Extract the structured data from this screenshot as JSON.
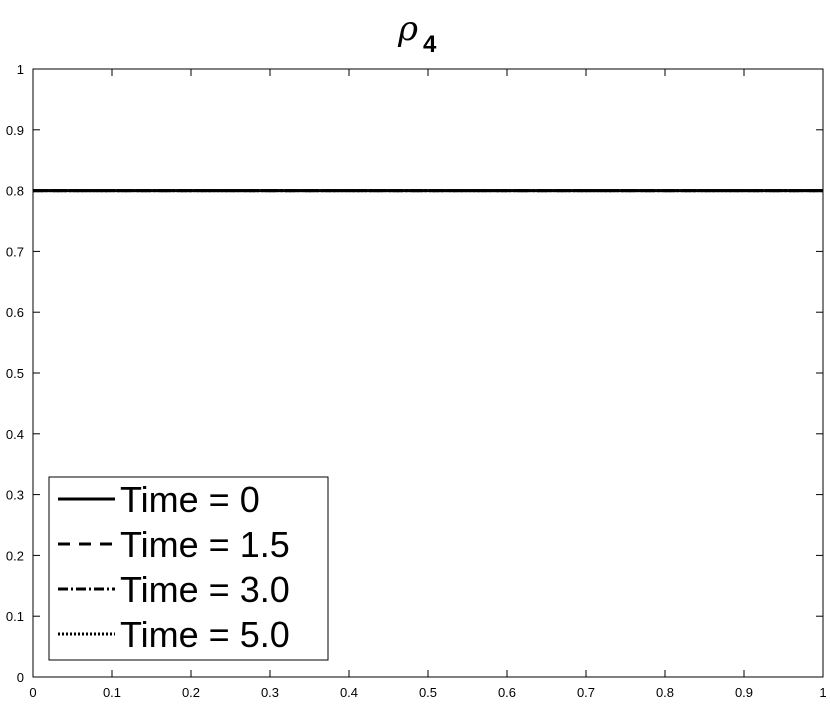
{
  "chart_data": {
    "type": "line",
    "title": {
      "symbol": "ρ",
      "subscript": "4"
    },
    "xlabel": "",
    "ylabel": "",
    "xlim": [
      0,
      1
    ],
    "ylim": [
      0,
      1
    ],
    "x_ticks": [
      "0",
      "0.1",
      "0.2",
      "0.3",
      "0.4",
      "0.5",
      "0.6",
      "0.7",
      "0.8",
      "0.9",
      "1"
    ],
    "y_ticks": [
      "0",
      "0.1",
      "0.2",
      "0.3",
      "0.4",
      "0.5",
      "0.6",
      "0.7",
      "0.8",
      "0.9",
      "1"
    ],
    "grid": false,
    "legend_position": "bottom-left",
    "series": [
      {
        "name": "Time = 0",
        "style": "solid",
        "x": [
          0,
          1
        ],
        "y": [
          0.8,
          0.8
        ]
      },
      {
        "name": "Time = 1.5",
        "style": "dashed",
        "x": [
          0,
          1
        ],
        "y": [
          0.8,
          0.8
        ]
      },
      {
        "name": "Time = 3.0",
        "style": "dashdot",
        "x": [
          0,
          1
        ],
        "y": [
          0.8,
          0.8
        ]
      },
      {
        "name": "Time = 5.0",
        "style": "dotted",
        "x": [
          0,
          1
        ],
        "y": [
          0.8,
          0.8
        ]
      }
    ],
    "colors": {
      "line": "#000000",
      "axes": "#000000",
      "background": "#ffffff"
    }
  }
}
